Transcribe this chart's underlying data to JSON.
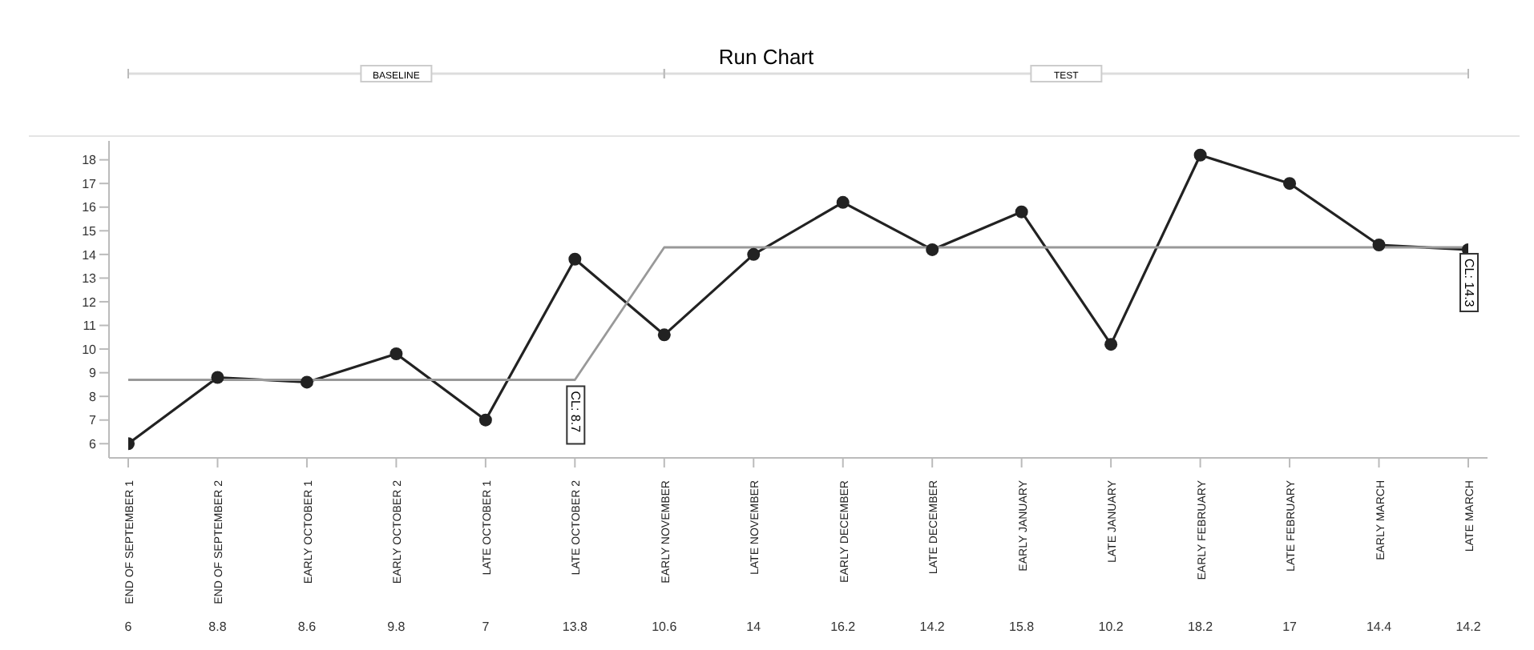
{
  "chart_data": {
    "type": "line",
    "title": "Run Chart",
    "categories": [
      "END OF SEPTEMBER 1",
      "END OF SEPTEMBER 2",
      "EARLY OCTOBER 1",
      "EARLY OCTOBER 2",
      "LATE OCTOBER 1",
      "LATE OCTOBER 2",
      "EARLY NOVEMBER",
      "LATE NOVEMBER",
      "EARLY DECEMBER",
      "LATE DECEMBER",
      "EARLY JANUARY",
      "LATE JANUARY",
      "EARLY FEBRUARY",
      "LATE FEBRUARY",
      "EARLY MARCH",
      "LATE MARCH"
    ],
    "series": [
      {
        "color": "#222222",
        "data_labels": true,
        "values": [
          6,
          8.8,
          8.6,
          9.8,
          7,
          13.8,
          10.6,
          14,
          16.2,
          14.2,
          15.8,
          10.2,
          18.2,
          17,
          14.4,
          14.2
        ]
      },
      {
        "color": "#999999",
        "marker": "none",
        "values": [
          8.7,
          8.7,
          8.7,
          8.7,
          8.7,
          8.7,
          14.3,
          14.3,
          14.3,
          14.3,
          14.3,
          14.3,
          14.3,
          14.3,
          14.3,
          14.3
        ]
      }
    ],
    "ylim": [
      5.4,
      18.8
    ],
    "yticks": [
      6,
      7,
      8,
      9,
      10,
      11,
      12,
      13,
      14,
      15,
      16,
      17,
      18
    ],
    "marker": "circle",
    "annotations": [
      "BASELINE",
      "TEST",
      {
        "text": "CL: 8.7",
        "x": "LATE OCTOBER 2",
        "y": 8.7
      },
      {
        "text": "CL: 14.3",
        "x": "LATE MARCH",
        "y": 14.3
      }
    ]
  }
}
